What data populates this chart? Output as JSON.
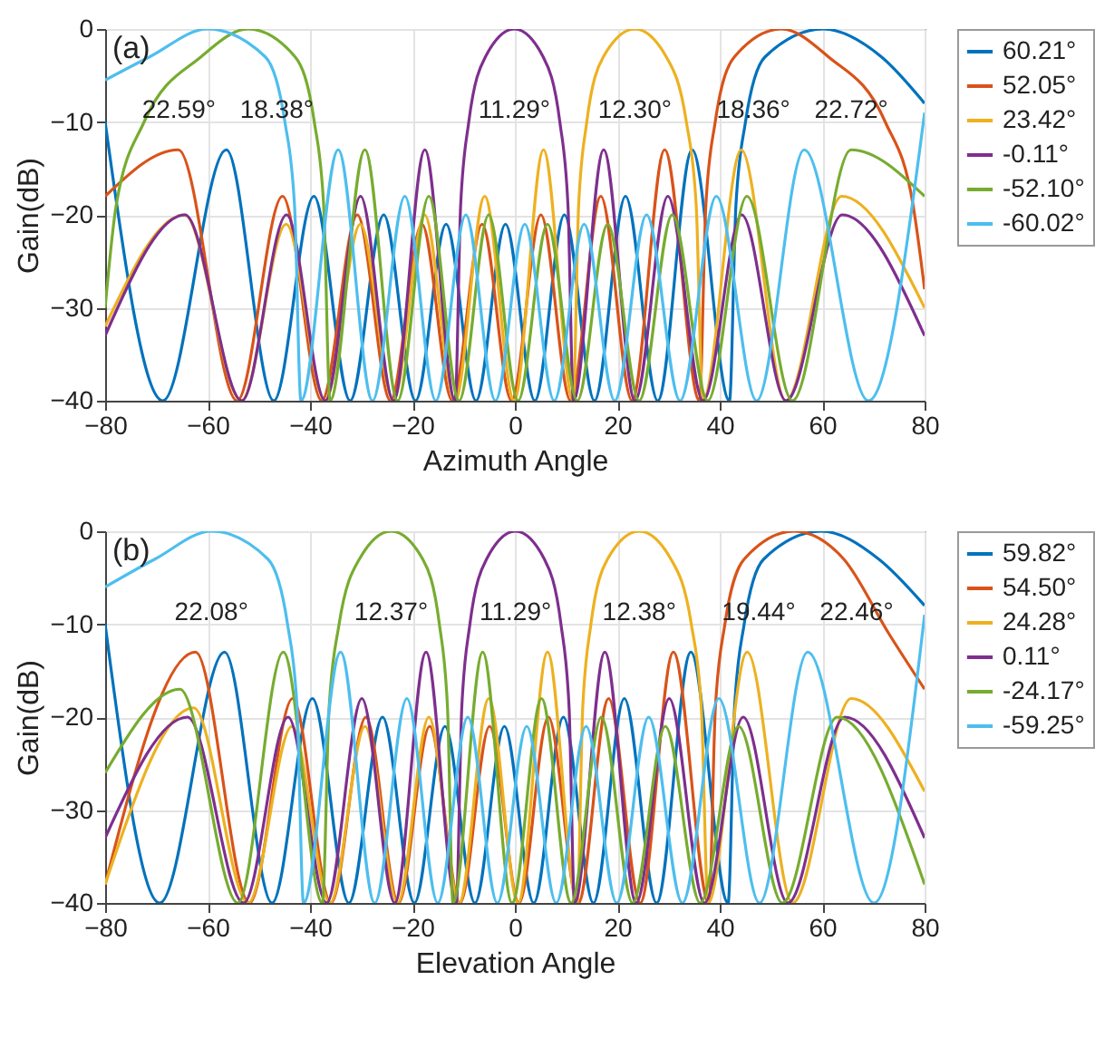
{
  "chart_data": [
    {
      "type": "line",
      "xlabel": "Azimuth Angle",
      "ylabel": "Gain(dB)",
      "xlim": [
        -80,
        80
      ],
      "ylim": [
        -40,
        0
      ],
      "xticks": [
        -80,
        -60,
        -40,
        -20,
        0,
        20,
        40,
        60,
        80
      ],
      "yticks": [
        -40,
        -30,
        -20,
        -10,
        0
      ],
      "grid": true,
      "legend": "right",
      "annotations": [
        "(a)",
        "22.59°",
        "18.38°",
        "11.29°",
        "12.30°",
        "18.36°",
        "22.72°"
      ],
      "series": [
        {
          "name": "60.21°",
          "color": "#0072bd",
          "x": [
            -80,
            -68.74,
            -56.33,
            -47.07,
            -39.23,
            -32.16,
            -25.61,
            -19.4,
            -13.42,
            -7.59,
            -1.83,
            3.9,
            9.67,
            15.55,
            21.6,
            27.9,
            34.61,
            41.91,
            43.16,
            45.03,
            48.85,
            60.21,
            71.57,
            80
          ],
          "values": [
            -10,
            -40,
            -13,
            -40,
            -18,
            -40,
            -20,
            -40,
            -21,
            -40,
            -21,
            -40,
            -20,
            -40,
            -18,
            -40,
            -13,
            -40,
            -19,
            -10,
            -3,
            0,
            -3,
            -8
          ]
        },
        {
          "name": "52.05°",
          "color": "#d95319",
          "x": [
            -80,
            -65.72,
            -54.23,
            -45.36,
            -37.7,
            -30.76,
            -24.3,
            -18.15,
            -12.22,
            -6.4,
            -0.66,
            5.08,
            10.88,
            16.78,
            22.88,
            29.25,
            36.06,
            37.29,
            39.12,
            42.87,
            52.05,
            61.23,
            72.32,
            77.77,
            80
          ],
          "values": [
            -18,
            -13,
            -40,
            -18,
            -40,
            -20,
            -40,
            -21,
            -40,
            -21,
            -40,
            -20,
            -40,
            -18,
            -40,
            -13,
            -40,
            -19,
            -10,
            -3,
            0,
            -3,
            -10,
            -19,
            -28
          ]
        },
        {
          "name": "23.42°",
          "color": "#edb120",
          "x": [
            -80,
            -64.5,
            -53.39,
            -44.65,
            -37.07,
            -30.17,
            -23.74,
            -17.62,
            -11.69,
            -5.89,
            -0.15,
            5.59,
            11.39,
            12.45,
            14.04,
            17.27,
            23.42,
            29.57,
            33.49,
            35.41,
            36.69,
            44.21,
            52.89,
            63.81,
            80
          ],
          "values": [
            -32,
            -20,
            -40,
            -21,
            -40,
            -21,
            -40,
            -20,
            -40,
            -18,
            -40,
            -13,
            -40,
            -19,
            -10,
            -3,
            0,
            -3,
            -10,
            -19,
            -40,
            -13,
            -40,
            -18,
            -30
          ]
        },
        {
          "name": "-0.11°",
          "color": "#7e2f8e",
          "x": [
            -80,
            -64.41,
            -53.31,
            -44.58,
            -37.01,
            -30.13,
            -23.7,
            -17.57,
            -11.65,
            -10.59,
            -9,
            -5.76,
            -0.11,
            5.53,
            8.78,
            10.37,
            11.43,
            17.34,
            23.46,
            29.87,
            36.74,
            44.28,
            52.96,
            63.92,
            80
          ],
          "values": [
            -33,
            -20,
            -40,
            -20,
            -40,
            -18,
            -40,
            -13,
            -40,
            -19,
            -10,
            -3,
            0,
            -3,
            -10,
            -19,
            -40,
            -13,
            -40,
            -18,
            -40,
            -20,
            -40,
            -20,
            -33
          ]
        },
        {
          "name": "-52.10°",
          "color": "#77ac30",
          "x": [
            -80,
            -77.85,
            -72.4,
            -61.29,
            -52.1,
            -42.91,
            -39.16,
            -37.33,
            -36.1,
            -29.28,
            -22.89,
            -16.8,
            -10.89,
            -5.11,
            0.63,
            6.37,
            12.18,
            18.12,
            24.27,
            30.73,
            37.66,
            45.31,
            54.19,
            65.65,
            80
          ],
          "values": [
            -30,
            -19,
            -10,
            -3,
            0,
            -3,
            -10,
            -19,
            -40,
            -13,
            -40,
            -18,
            -40,
            -20,
            -40,
            -21,
            -40,
            -21,
            -40,
            -20,
            -40,
            -18,
            -40,
            -13,
            -18
          ]
        },
        {
          "name": "-60.02°",
          "color": "#4dbeee",
          "x": [
            -80,
            -71.32,
            -60.02,
            -48.73,
            -44.9,
            -43.02,
            -41.77,
            -34.49,
            -27.79,
            -21.48,
            -15.44,
            -9.57,
            -3.8,
            1.94,
            7.69,
            13.52,
            19.5,
            25.71,
            32.26,
            39.33,
            47.21,
            56.49,
            69.03,
            80
          ],
          "values": [
            -5.5,
            -3,
            0,
            -3,
            -10,
            -19,
            -40,
            -13,
            -40,
            -18,
            -40,
            -20,
            -40,
            -21,
            -40,
            -21,
            -40,
            -20,
            -40,
            -18,
            -40,
            -13,
            -40,
            -9
          ]
        }
      ]
    },
    {
      "type": "line",
      "xlabel": "Elevation Angle",
      "ylabel": "Gain(dB)",
      "xlim": [
        -80,
        80
      ],
      "ylim": [
        -40,
        0
      ],
      "xticks": [
        -80,
        -60,
        -40,
        -20,
        0,
        20,
        40,
        60,
        80
      ],
      "yticks": [
        -40,
        -30,
        -20,
        -10,
        0
      ],
      "grid": true,
      "legend": "right",
      "annotations": [
        "(b)",
        "22.08°",
        "12.37°",
        "11.29°",
        "12.38°",
        "19.44°",
        "22.46°"
      ],
      "series": [
        {
          "name": "59.82°",
          "color": "#0072bd",
          "x": [
            -80,
            -69.34,
            -56.68,
            -47.41,
            -39.52,
            -32.41,
            -25.84,
            -19.62,
            -13.64,
            -7.8,
            -2.04,
            3.69,
            9.47,
            15.34,
            21.37,
            27.67,
            34.36,
            41.64,
            42.89,
            44.77,
            48.59,
            59.82,
            71.05,
            80
          ],
          "values": [
            -10,
            -40,
            -13,
            -40,
            -18,
            -40,
            -20,
            -40,
            -21,
            -40,
            -21,
            -40,
            -20,
            -40,
            -18,
            -40,
            -13,
            -40,
            -19,
            -10,
            -3,
            0,
            -3,
            -8
          ]
        },
        {
          "name": "54.50°",
          "color": "#d95319",
          "x": [
            -80,
            -62.36,
            -51.81,
            -43.38,
            -35.9,
            -29.09,
            -22.72,
            -16.63,
            -10.72,
            -4.93,
            0.81,
            6.55,
            12.37,
            18.31,
            24.47,
            30.95,
            37.92,
            39.15,
            41.01,
            44.78,
            54.5,
            64.22,
            73,
            80
          ],
          "values": [
            -38,
            -13,
            -40,
            -18,
            -40,
            -20,
            -40,
            -21,
            -40,
            -21,
            -40,
            -20,
            -40,
            -18,
            -40,
            -13,
            -40,
            -19,
            -10,
            -3,
            0,
            -3,
            -11,
            -17
          ]
        },
        {
          "name": "24.28°",
          "color": "#edb120",
          "x": [
            -80,
            -62.73,
            -52.08,
            -43.53,
            -36.07,
            -29.26,
            -22.88,
            -16.79,
            -10.88,
            -5.09,
            0.64,
            6.38,
            12.19,
            13.25,
            14.85,
            18.09,
            24.28,
            30.47,
            34.45,
            36.41,
            37.71,
            45.36,
            54.23,
            65.66,
            80
          ],
          "values": [
            -38,
            -19,
            -40,
            -21,
            -40,
            -21,
            -40,
            -20,
            -40,
            -18,
            -40,
            -13,
            -40,
            -19,
            -10,
            -3,
            0,
            -3,
            -10,
            -19,
            -40,
            -13,
            -40,
            -18,
            -28
          ]
        },
        {
          "name": "0.11°",
          "color": "#7e2f8e",
          "x": [
            -80,
            -63.92,
            -52.96,
            -44.28,
            -36.74,
            -29.87,
            -23.46,
            -17.34,
            -11.43,
            -10.37,
            -8.78,
            -5.53,
            0.11,
            5.76,
            9,
            10.59,
            11.65,
            17.57,
            23.7,
            30.13,
            37.01,
            44.58,
            53.31,
            64.41,
            80
          ],
          "values": [
            -33,
            -20,
            -40,
            -20,
            -40,
            -18,
            -40,
            -13,
            -40,
            -19,
            -10,
            -3,
            0,
            -3,
            -10,
            -19,
            -40,
            -13,
            -40,
            -18,
            -40,
            -20,
            -40,
            -20,
            -33
          ]
        },
        {
          "name": "-24.17°",
          "color": "#77ac30",
          "x": [
            -80,
            -65.41,
            -54.07,
            -45.21,
            -37.57,
            -36.27,
            -34.32,
            -30.36,
            -24.17,
            -17.99,
            -14.74,
            -13.15,
            -12.09,
            -6.28,
            -0.54,
            5.2,
            10.99,
            16.89,
            22.99,
            29.38,
            36.2,
            43.68,
            52.24,
            62.95,
            80
          ],
          "values": [
            -26,
            -17,
            -40,
            -13,
            -40,
            -19,
            -10,
            -3,
            0,
            -3,
            -10,
            -19,
            -40,
            -13,
            -40,
            -18,
            -40,
            -20,
            -40,
            -21,
            -40,
            -21,
            -40,
            -20,
            -38
          ]
        },
        {
          "name": "-59.25°",
          "color": "#4dbeee",
          "x": [
            -80,
            -70.29,
            -59.25,
            -48.21,
            -44.39,
            -42.52,
            -41.27,
            -34.03,
            -27.36,
            -21.08,
            -15.05,
            -9.19,
            -3.42,
            2.32,
            8.07,
            13.91,
            19.9,
            26.13,
            32.71,
            39.82,
            47.77,
            57.18,
            70.12,
            80
          ],
          "values": [
            -6,
            -3,
            0,
            -3,
            -10,
            -19,
            -40,
            -13,
            -40,
            -18,
            -40,
            -20,
            -40,
            -21,
            -40,
            -21,
            -40,
            -20,
            -40,
            -18,
            -40,
            -13,
            -40,
            -9
          ]
        }
      ]
    }
  ]
}
